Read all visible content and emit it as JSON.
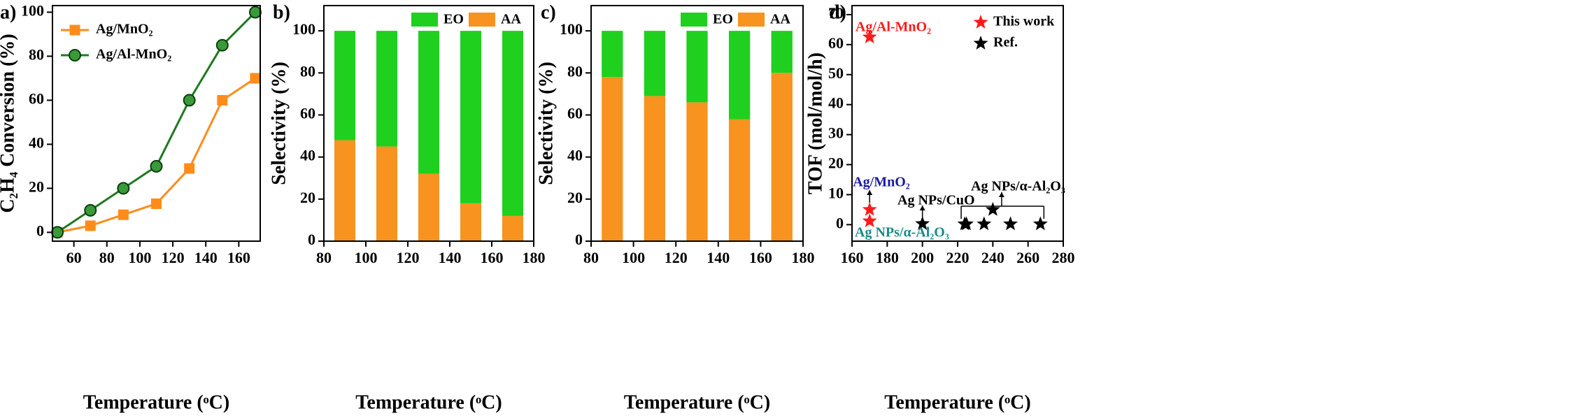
{
  "chart_data": [
    {
      "type": "line",
      "label": "a)",
      "xlabel": "Temperature (ᵒC)",
      "ylabel": "C₂H₄ Conversion (%)",
      "x": [
        50,
        70,
        90,
        110,
        130,
        150,
        170
      ],
      "xlim": [
        47,
        173
      ],
      "xticks": [
        60,
        80,
        100,
        120,
        140,
        160
      ],
      "ylim": [
        -4,
        103
      ],
      "yticks": [
        0,
        20,
        40,
        60,
        80,
        100
      ],
      "legend": "upper left",
      "series": [
        {
          "name": "Ag/MnO₂",
          "color": "#ff8c1a",
          "marker": "square",
          "values": [
            0,
            3,
            8,
            13,
            29,
            60,
            70
          ]
        },
        {
          "name": "Ag/Al-MnO₂",
          "color": "#1f7a1f",
          "marker": "circle",
          "values": [
            0,
            10,
            20,
            30,
            60,
            85,
            100
          ]
        }
      ]
    },
    {
      "type": "stacked_bar",
      "label": "b)",
      "xlabel": "Temperature (ᵒC)",
      "ylabel": "Selectivity (%)",
      "x": [
        90,
        110,
        130,
        150,
        170
      ],
      "xlim": [
        80,
        180
      ],
      "xticks": [
        80,
        100,
        120,
        140,
        160,
        180
      ],
      "ylim": [
        0,
        112
      ],
      "yticks": [
        0,
        20,
        40,
        60,
        80,
        100
      ],
      "legend": "upper right",
      "series": [
        {
          "name": "AA",
          "color": "#f7931e",
          "values": [
            48,
            45,
            32,
            18,
            12
          ]
        },
        {
          "name": "EO",
          "color": "#1fd01f",
          "values": [
            52,
            55,
            68,
            82,
            88
          ]
        }
      ]
    },
    {
      "type": "stacked_bar",
      "label": "c)",
      "xlabel": "Temperature (ᵒC)",
      "ylabel": "Selectivity (%)",
      "x": [
        90,
        110,
        130,
        150,
        170
      ],
      "xlim": [
        80,
        180
      ],
      "xticks": [
        80,
        100,
        120,
        140,
        160,
        180
      ],
      "ylim": [
        0,
        112
      ],
      "yticks": [
        0,
        20,
        40,
        60,
        80,
        100
      ],
      "legend": "upper right",
      "series": [
        {
          "name": "AA",
          "color": "#f7931e",
          "values": [
            78,
            69,
            66,
            58,
            80
          ]
        },
        {
          "name": "EO",
          "color": "#1fd01f",
          "values": [
            22,
            31,
            34,
            42,
            20
          ]
        }
      ]
    },
    {
      "type": "scatter",
      "label": "d)",
      "xlabel": "Temperature (ᵒC)",
      "ylabel": "TOF (mol/mol/h)",
      "xlim": [
        160,
        280
      ],
      "xticks": [
        160,
        180,
        200,
        220,
        240,
        260,
        280
      ],
      "ylim": [
        -5.5,
        73
      ],
      "yticks": [
        0,
        10,
        20,
        30,
        40,
        50,
        60,
        70
      ],
      "legend": "upper right",
      "series": [
        {
          "name": "This work",
          "color": "#ff1a1a",
          "marker": "star",
          "x": [
            170,
            170,
            170
          ],
          "values": [
            62.5,
            5,
            1.2
          ]
        },
        {
          "name": "Ref.",
          "color": "#000000",
          "marker": "star",
          "x": [
            200,
            224,
            225,
            235,
            240,
            250,
            267
          ],
          "values": [
            0.3,
            0.2,
            0.2,
            0.2,
            5,
            0.2,
            0.2
          ]
        }
      ],
      "annotations": [
        {
          "text": "Ag/Al-MnO₂",
          "color": "#ff1a1a"
        },
        {
          "text": "Ag/MnO₂",
          "color": "#1a1aa0"
        },
        {
          "text": "Ag NPs/α-Al₂O₃",
          "color": "#1a8a8a"
        },
        {
          "text": "Ag NPs/CuO",
          "color": "#000000"
        },
        {
          "text": "Ag NPs/α-Al₂O₃",
          "color": "#000000"
        }
      ]
    }
  ]
}
